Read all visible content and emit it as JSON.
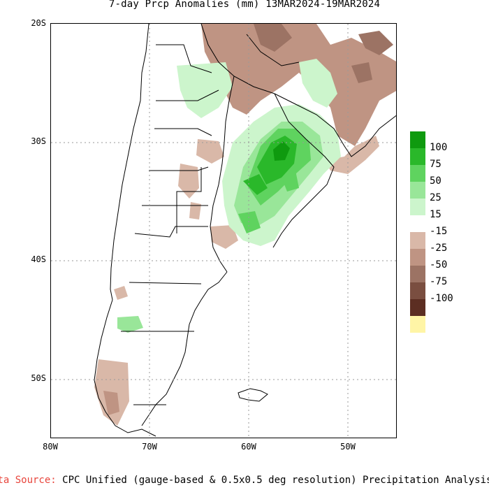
{
  "title": "7-day Prcp Anomalies (mm) 13MAR2024-19MAR2024",
  "map": {
    "lat_ticks": [
      "20S",
      "30S",
      "40S",
      "50S"
    ],
    "lon_ticks": [
      "80W",
      "70W",
      "60W",
      "50W"
    ],
    "colors": {
      "grid": "#9a9a9a",
      "border": "#000000",
      "green_light": "#ccf5cc",
      "green_mid": "#99e699",
      "green": "#5fd35f",
      "green_dark": "#2ab82a",
      "green_darkest": "#0f9a0f",
      "brown_light": "#d9b8a8",
      "brown_mid": "#bf9483",
      "brown_dark": "#9c7364"
    }
  },
  "legend": {
    "items": [
      {
        "label": "100",
        "color": "#0f9a0f"
      },
      {
        "label": "75",
        "color": "#2ab82a"
      },
      {
        "label": "50",
        "color": "#5fd35f"
      },
      {
        "label": "25",
        "color": "#99e699"
      },
      {
        "label": "15",
        "color": "#ccf5cc"
      },
      {
        "label": "-15",
        "color": "#ffffff"
      },
      {
        "label": "-25",
        "color": "#d9b8a8"
      },
      {
        "label": "-50",
        "color": "#bf9483"
      },
      {
        "label": "-75",
        "color": "#9c7364"
      },
      {
        "label": "-100",
        "color": "#7a4e40"
      },
      {
        "label": "",
        "color": "#5c2e22"
      },
      {
        "label": "",
        "color": "#fff5a6"
      }
    ]
  },
  "source": {
    "label": "ata Source:",
    "text": " CPC Unified (gauge-based & 0.5x0.5 deg resolution) Precipitation Analysis"
  }
}
